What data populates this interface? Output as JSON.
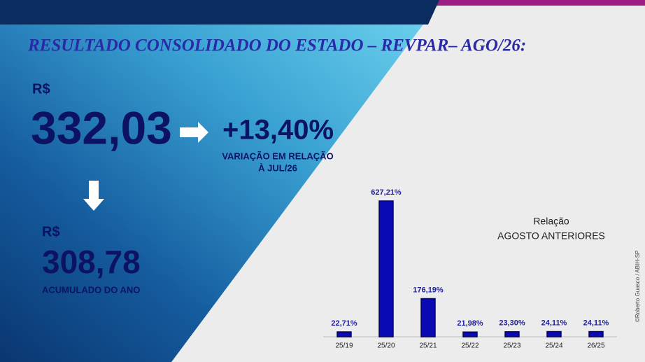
{
  "header": {
    "title": "RESULTADO CONSOLIDADO DO ESTADO – REVPAR– AGO/26:"
  },
  "main": {
    "currency": "R$",
    "value": "332,03",
    "variation": "+13,40%",
    "variation_note": [
      "VARIAÇÃO EM RELAÇÃO",
      "À JUL/26"
    ]
  },
  "accumulated": {
    "currency": "R$",
    "value": "308,78",
    "label": "ACUMULADO DO ANO"
  },
  "credit": "©Roberto Guasco / ABIH-SP",
  "chart_data": {
    "type": "bar",
    "annotations": [
      "Relação",
      "AGOSTO ANTERIORES"
    ],
    "categories": [
      "25/19",
      "25/20",
      "25/21",
      "25/22",
      "25/23",
      "25/24",
      "26/25"
    ],
    "values": [
      22.71,
      627.21,
      176.19,
      21.98,
      23.3,
      24.11,
      24.11
    ],
    "value_labels": [
      "22,71%",
      "627,21%",
      "176,19%",
      "21,98%",
      "23,30%",
      "24,11%",
      "24,11%"
    ],
    "color": "#0a0ab4"
  }
}
